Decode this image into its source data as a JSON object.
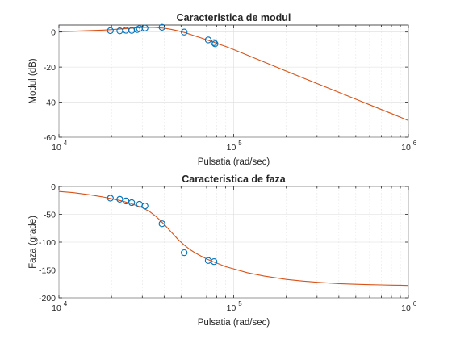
{
  "colors": {
    "model_curve": "#d95319",
    "data_markers": "#0072bd",
    "axes": "#262626"
  },
  "chart_data": [
    {
      "type": "line",
      "title": "Caracteristica de modul",
      "xlabel": "Pulsatia (rad/sec)",
      "ylabel": "Modul (dB)",
      "xscale": "log",
      "xlim": [
        10000,
        1000000
      ],
      "ylim": [
        -60,
        4
      ],
      "xticks": [
        10000,
        100000,
        1000000
      ],
      "xtick_labels": [
        {
          "base": "10",
          "exp": "4"
        },
        {
          "base": "10",
          "exp": "5"
        },
        {
          "base": "10",
          "exp": "6"
        }
      ],
      "yticks": [
        0,
        -20,
        -40,
        -60
      ],
      "ytick_labels": [
        "0",
        "-20",
        "-40",
        "-60"
      ],
      "grid": true,
      "series": [
        {
          "kind": "line",
          "color": "#d95319",
          "x": [
            10000,
            12000,
            15000,
            18000,
            20000,
            23000,
            26000,
            30000,
            33000,
            36000,
            40000,
            44000,
            48000,
            52000,
            56000,
            60000,
            65000,
            70000,
            76000,
            82000,
            90000,
            100000,
            120000,
            150000,
            200000,
            250000,
            300000,
            400000,
            500000,
            600000,
            700000,
            800000,
            900000,
            1000000
          ],
          "y": [
            0.3,
            0.45,
            0.8,
            1.1,
            1.4,
            1.8,
            2.2,
            2.6,
            2.7,
            2.6,
            2.2,
            1.5,
            0.7,
            -0.2,
            -1.2,
            -2.2,
            -3.3,
            -4.4,
            -5.6,
            -6.8,
            -8.2,
            -10.0,
            -13.2,
            -17.2,
            -22.3,
            -26.2,
            -29.4,
            -34.4,
            -38.3,
            -41.5,
            -44.2,
            -46.5,
            -48.6,
            -50.5
          ]
        },
        {
          "kind": "scatter",
          "color": "#0072bd",
          "x": [
            19700,
            22300,
            24200,
            26100,
            28000,
            28900,
            31100,
            38900,
            52100,
            71500,
            77200,
            78200
          ],
          "y": [
            0.8,
            0.7,
            1.0,
            0.9,
            1.4,
            2.0,
            2.3,
            2.7,
            0.0,
            -4.5,
            -6.0,
            -6.7
          ]
        }
      ]
    },
    {
      "type": "line",
      "title": "Caracteristica de faza",
      "xlabel": "Pulsatia (rad/sec)",
      "ylabel": "Faza (grade)",
      "xscale": "log",
      "xlim": [
        10000,
        1000000
      ],
      "ylim": [
        -200,
        0
      ],
      "xticks": [
        10000,
        100000,
        1000000
      ],
      "xtick_labels": [
        {
          "base": "10",
          "exp": "4"
        },
        {
          "base": "10",
          "exp": "5"
        },
        {
          "base": "10",
          "exp": "6"
        }
      ],
      "yticks": [
        0,
        -50,
        -100,
        -150,
        -200
      ],
      "ytick_labels": [
        "0",
        "-50",
        "-100",
        "-150",
        "-200"
      ],
      "grid": true,
      "series": [
        {
          "kind": "line",
          "color": "#d95319",
          "x": [
            10000,
            12000,
            15000,
            18000,
            20000,
            23000,
            26000,
            30000,
            33000,
            36000,
            40000,
            44000,
            48000,
            52000,
            56000,
            60000,
            65000,
            70000,
            76000,
            82000,
            90000,
            100000,
            120000,
            150000,
            200000,
            250000,
            300000,
            400000,
            500000,
            600000,
            700000,
            800000,
            900000,
            1000000
          ],
          "y": [
            -9,
            -11,
            -15,
            -19,
            -22,
            -26,
            -31,
            -38,
            -45,
            -54,
            -68,
            -82,
            -95,
            -105,
            -113,
            -119,
            -125,
            -130,
            -135,
            -139,
            -144,
            -148,
            -155,
            -161,
            -167,
            -170,
            -172,
            -174.5,
            -175.7,
            -176.3,
            -176.8,
            -177.2,
            -177.5,
            -177.8
          ]
        },
        {
          "kind": "scatter",
          "color": "#0072bd",
          "x": [
            19700,
            22300,
            24200,
            26100,
            28900,
            31100,
            38900,
            52100,
            71500,
            77200
          ],
          "y": [
            -21,
            -23,
            -26,
            -29,
            -32,
            -35,
            -67,
            -119,
            -133,
            -135
          ]
        }
      ]
    }
  ]
}
